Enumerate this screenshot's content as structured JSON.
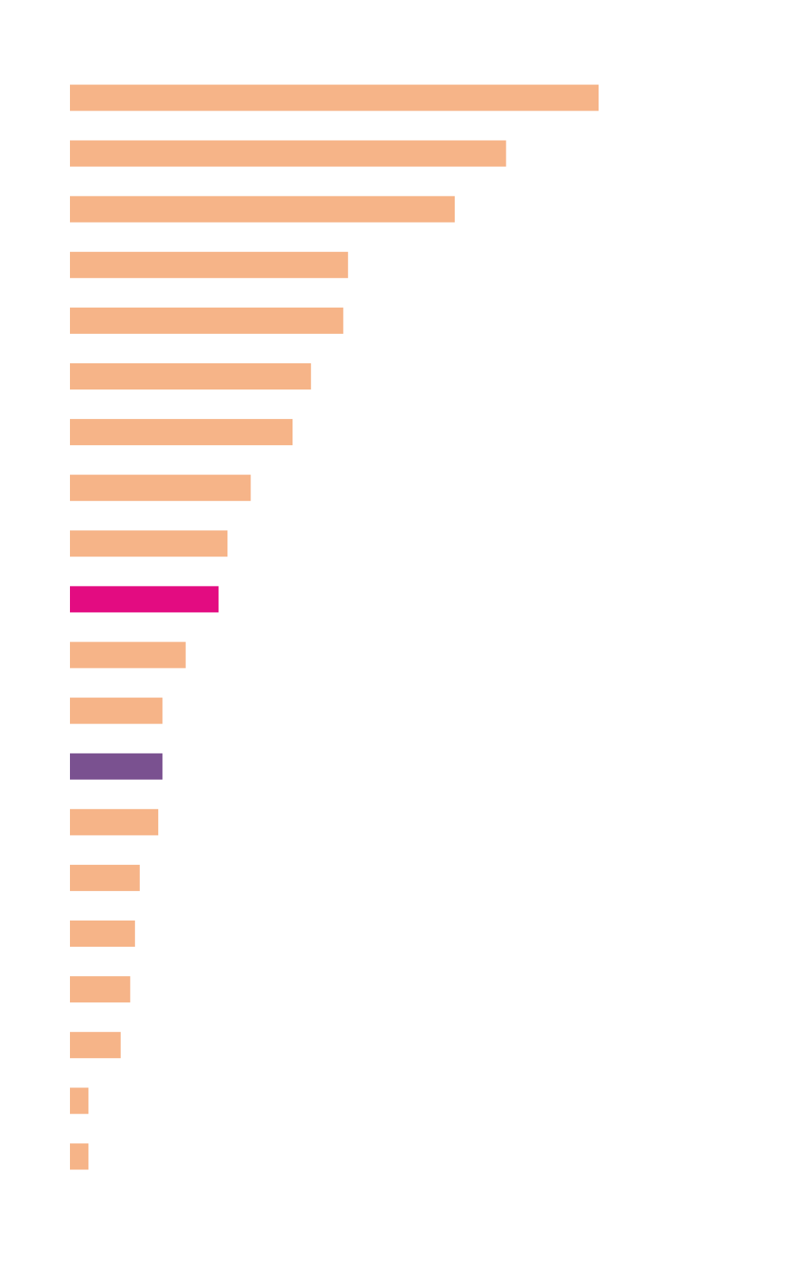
{
  "colors": {
    "default_bar": "#F6B488",
    "highlight_pink": "#E30C81",
    "highlight_purple": "#7A5190",
    "background": "#FFFFFF"
  },
  "chart_data": {
    "type": "bar",
    "orientation": "horizontal",
    "title": "",
    "xlabel": "",
    "ylabel": "",
    "grid": false,
    "legend": "none",
    "xlim": [
      0,
      100
    ],
    "values": [
      100,
      82.5,
      72.8,
      52.6,
      51.7,
      45.6,
      42.1,
      34.2,
      29.8,
      28.1,
      21.9,
      17.5,
      17.5,
      16.7,
      13.2,
      12.3,
      11.4,
      9.6,
      3.5,
      3.5
    ],
    "bar_colors": [
      "default",
      "default",
      "default",
      "default",
      "default",
      "default",
      "default",
      "default",
      "default",
      "pink",
      "default",
      "default",
      "purple",
      "default",
      "default",
      "default",
      "default",
      "default",
      "default",
      "default"
    ]
  }
}
